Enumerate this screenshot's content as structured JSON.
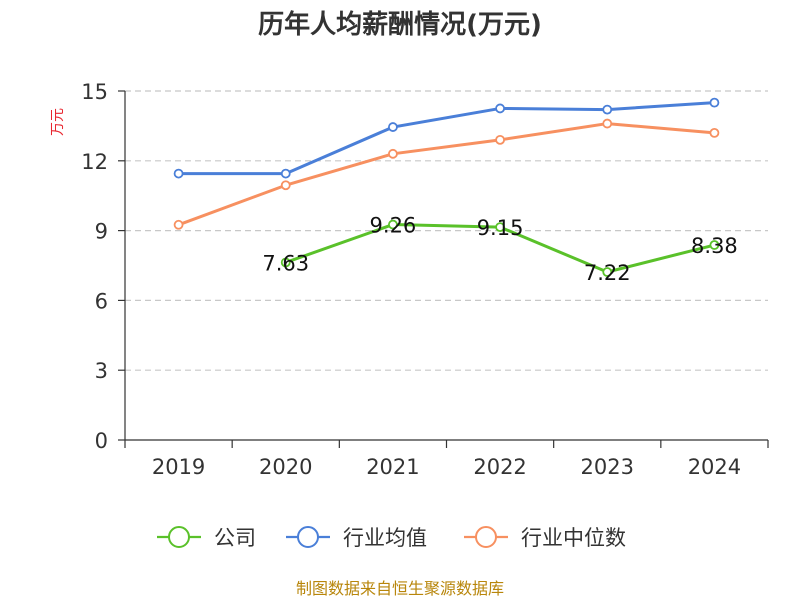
{
  "chart_data": {
    "type": "line",
    "title": "历年人均薪酬情况(万元)",
    "ylabel": "万元",
    "xlabel": "",
    "categories": [
      "2019",
      "2020",
      "2021",
      "2022",
      "2023",
      "2024"
    ],
    "ylim": [
      0,
      15
    ],
    "yticks": [
      0,
      3,
      6,
      9,
      12,
      15
    ],
    "grid": true,
    "legend_position": "bottom",
    "series": [
      {
        "name": "公司",
        "color": "#5ac12a",
        "values": [
          null,
          7.63,
          9.26,
          9.15,
          7.22,
          8.38
        ],
        "labels": [
          "",
          "7.63",
          "9.26",
          "9.15",
          "7.22",
          "8.38"
        ]
      },
      {
        "name": "行业均值",
        "color": "#4a7fd8",
        "values": [
          11.45,
          11.45,
          13.45,
          14.25,
          14.2,
          14.5
        ]
      },
      {
        "name": "行业中位数",
        "color": "#f79060",
        "values": [
          9.25,
          10.95,
          12.3,
          12.9,
          13.6,
          13.2
        ]
      }
    ],
    "source": "制图数据来自恒生聚源数据库"
  }
}
